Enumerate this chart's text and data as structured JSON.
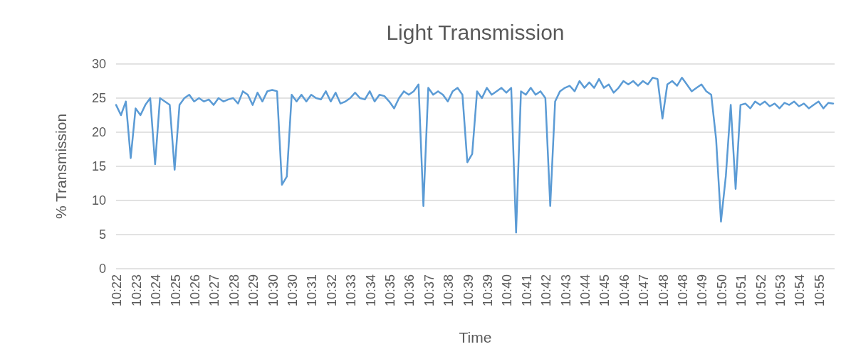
{
  "chart_data": {
    "type": "line",
    "title": "Light Transmission",
    "xlabel": "Time",
    "ylabel": "% Transmission",
    "categories": [
      "10:22",
      null,
      null,
      null,
      "10:23",
      null,
      null,
      null,
      "10:24",
      null,
      null,
      null,
      "10:25",
      null,
      null,
      null,
      "10:26",
      null,
      null,
      null,
      "10:27",
      null,
      null,
      null,
      "10:28",
      null,
      null,
      null,
      "10:29",
      null,
      null,
      null,
      "10:30",
      null,
      null,
      null,
      "10:30",
      null,
      null,
      null,
      "10:31",
      null,
      null,
      null,
      "10:32",
      null,
      null,
      null,
      "10:33",
      null,
      null,
      null,
      "10:34",
      null,
      null,
      null,
      "10:35",
      null,
      null,
      null,
      "10:36",
      null,
      null,
      null,
      "10:37",
      null,
      null,
      null,
      "10:38",
      null,
      null,
      null,
      "10:39",
      null,
      null,
      null,
      "10:39",
      null,
      null,
      null,
      "10:40",
      null,
      null,
      null,
      "10:41",
      null,
      null,
      null,
      "10:42",
      null,
      null,
      null,
      "10:43",
      null,
      null,
      null,
      "10:44",
      null,
      null,
      null,
      "10:45",
      null,
      null,
      null,
      "10:46",
      null,
      null,
      null,
      "10:47",
      null,
      null,
      null,
      "10:48",
      null,
      null,
      null,
      "10:48",
      null,
      null,
      null,
      "10:49",
      null,
      null,
      null,
      "10:50",
      null,
      null,
      null,
      "10:51",
      null,
      null,
      null,
      "10:52",
      null,
      null,
      null,
      "10:53",
      null,
      null,
      null,
      "10:54",
      null,
      null,
      null,
      "10:55",
      null,
      null,
      null
    ],
    "series": [
      {
        "color": "#5b9bd5",
        "values": [
          24,
          22.5,
          24.5,
          16.2,
          23.5,
          22.5,
          24,
          25,
          15.3,
          25,
          24.5,
          24,
          14.5,
          24,
          25,
          25.5,
          24.5,
          25,
          24.5,
          24.8,
          24,
          25,
          24.5,
          24.8,
          25,
          24.2,
          26,
          25.5,
          24,
          25.8,
          24.5,
          26,
          26.2,
          26,
          12.3,
          13.5,
          25.5,
          24.5,
          25.5,
          24.5,
          25.5,
          25,
          24.8,
          26,
          24.5,
          25.8,
          24.2,
          24.5,
          25,
          25.8,
          25,
          24.8,
          26,
          24.5,
          25.5,
          25.3,
          24.5,
          23.5,
          25,
          26,
          25.5,
          26,
          27,
          9.2,
          26.5,
          25.5,
          26,
          25.5,
          24.5,
          26,
          26.5,
          25.5,
          15.6,
          16.8,
          26,
          25,
          26.5,
          25.5,
          26,
          26.5,
          25.8,
          26.5,
          5.3,
          26,
          25.5,
          26.5,
          25.5,
          26,
          25,
          9.2,
          24.5,
          26,
          26.5,
          26.8,
          26,
          27.5,
          26.5,
          27.3,
          26.5,
          27.8,
          26.5,
          27,
          25.8,
          26.5,
          27.5,
          27,
          27.5,
          26.8,
          27.5,
          27,
          28,
          27.8,
          22,
          27,
          27.5,
          26.8,
          28,
          27,
          26,
          26.5,
          27,
          26,
          25.5,
          19,
          6.9,
          13.6,
          24,
          11.7,
          24,
          24.2,
          23.5,
          24.5,
          24,
          24.5,
          23.8,
          24.2,
          23.5,
          24.3,
          24,
          24.5,
          23.8,
          24.2,
          23.5,
          24,
          24.5,
          23.5,
          24.3,
          24.2
        ]
      }
    ],
    "ylim": [
      0,
      30
    ],
    "yticks": [
      0,
      5,
      10,
      15,
      20,
      25,
      30
    ],
    "grid": "y",
    "marker": "none",
    "line_style": "solid"
  }
}
